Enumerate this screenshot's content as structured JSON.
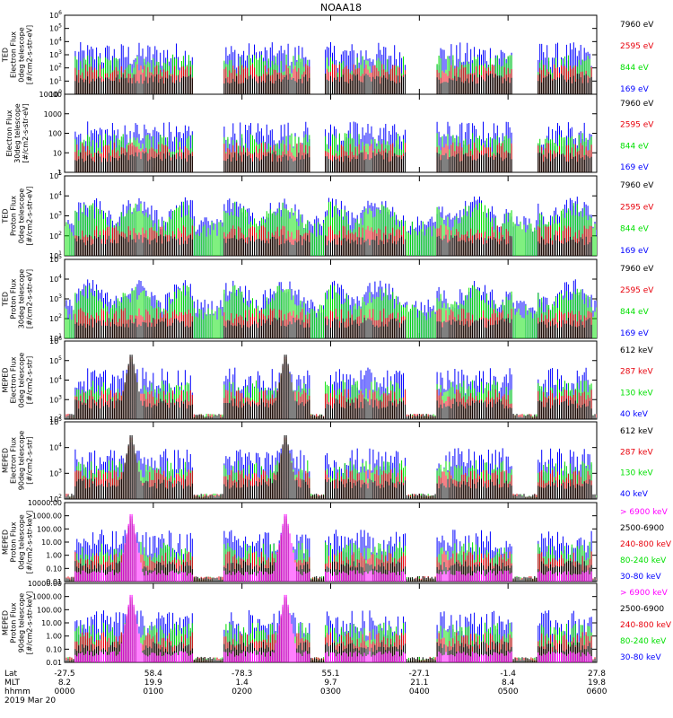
{
  "title": "NOAA18",
  "colors": {
    "black": "#000000",
    "red": "#e8000b",
    "green": "#00e000",
    "blue": "#0000ff",
    "magenta": "#ff00ff"
  },
  "footer": {
    "row_labels": [
      "Lat",
      "MLT",
      "hhmm",
      "2019 Mar 20"
    ],
    "columns": [
      {
        "lat": "-27.5",
        "mlt": "8.2",
        "hhmm": "0000"
      },
      {
        "lat": "58.4",
        "mlt": "19.9",
        "hhmm": "0100"
      },
      {
        "lat": "-78.3",
        "mlt": "1.4",
        "hhmm": "0200"
      },
      {
        "lat": "55.1",
        "mlt": "9.7",
        "hhmm": "0300"
      },
      {
        "lat": "-27.1",
        "mlt": "21.1",
        "hhmm": "0400"
      },
      {
        "lat": "-1.4",
        "mlt": "8.4",
        "hhmm": "0500"
      },
      {
        "lat": "27.8",
        "mlt": "19.8",
        "hhmm": "0600"
      }
    ]
  },
  "chart_data": [
    {
      "type": "line",
      "scale": "log",
      "ylabel": [
        "TED",
        "Electron Flux",
        "0deg telescope",
        "[#/cm2-s-str-eV]"
      ],
      "yticks": [
        "10^0",
        "10^1",
        "10^2",
        "10^3",
        "10^4",
        "10^5",
        "10^6"
      ],
      "ylim": [
        1,
        1000000
      ],
      "series": [
        {
          "name": "7960 eV",
          "color": "black"
        },
        {
          "name": "2595 eV",
          "color": "red"
        },
        {
          "name": "844 eV",
          "color": "green"
        },
        {
          "name": "169 eV",
          "color": "blue"
        }
      ]
    },
    {
      "type": "line",
      "scale": "log",
      "ylabel": [
        "Electron Flux",
        "30deg telescope",
        "[#/cm2-s-str-eV]"
      ],
      "yticks": [
        "1",
        "10",
        "100",
        "1000",
        "10000"
      ],
      "ylim": [
        1,
        10000
      ],
      "series": [
        {
          "name": "7960 eV",
          "color": "black"
        },
        {
          "name": "2595 eV",
          "color": "red"
        },
        {
          "name": "844 eV",
          "color": "green"
        },
        {
          "name": "169 eV",
          "color": "blue"
        }
      ]
    },
    {
      "type": "line",
      "scale": "log",
      "ylabel": [
        "TED",
        "Proton Flux",
        "0deg telescope",
        "[#/cm2-s-str-eV]"
      ],
      "yticks": [
        "10^1",
        "10^2",
        "10^3",
        "10^4",
        "10^5"
      ],
      "ylim": [
        10,
        100000
      ],
      "series": [
        {
          "name": "7960 eV",
          "color": "black"
        },
        {
          "name": "2595 eV",
          "color": "red"
        },
        {
          "name": "844 eV",
          "color": "green"
        },
        {
          "name": "169 eV",
          "color": "blue"
        }
      ]
    },
    {
      "type": "line",
      "scale": "log",
      "ylabel": [
        "TED",
        "Proton Flux",
        "30deg telescope",
        "[#/cm2-s-str-eV]"
      ],
      "yticks": [
        "10^1",
        "10^2",
        "10^3",
        "10^4",
        "10^5"
      ],
      "ylim": [
        10,
        100000
      ],
      "series": [
        {
          "name": "7960 eV",
          "color": "black"
        },
        {
          "name": "2595 eV",
          "color": "red"
        },
        {
          "name": "844 eV",
          "color": "green"
        },
        {
          "name": "169 eV",
          "color": "blue"
        }
      ]
    },
    {
      "type": "line",
      "scale": "log",
      "ylabel": [
        "MEPED",
        "Electron Flux",
        "0deg telescope",
        "[#/cm2-s-str]"
      ],
      "yticks": [
        "10^2",
        "10^3",
        "10^4",
        "10^5",
        "10^6"
      ],
      "ylim": [
        100,
        1000000
      ],
      "series": [
        {
          "name": "612 keV",
          "color": "black"
        },
        {
          "name": "287 keV",
          "color": "red"
        },
        {
          "name": "130 keV",
          "color": "green"
        },
        {
          "name": "40 keV",
          "color": "blue"
        }
      ]
    },
    {
      "type": "line",
      "scale": "log",
      "ylabel": [
        "MEPED",
        "Electron Flux",
        "90deg telescope",
        "[#/cm2-s-str]"
      ],
      "yticks": [
        "10^2",
        "10^3",
        "10^4",
        "10^5"
      ],
      "ylim": [
        100,
        100000
      ],
      "series": [
        {
          "name": "612 keV",
          "color": "black"
        },
        {
          "name": "287 keV",
          "color": "red"
        },
        {
          "name": "130 keV",
          "color": "green"
        },
        {
          "name": "40 keV",
          "color": "blue"
        }
      ]
    },
    {
      "type": "line",
      "scale": "log",
      "ylabel": [
        "MEPED",
        "Proton Flux",
        "0deg telescope",
        "[#/cm2-s-str-keV]"
      ],
      "yticks": [
        "0.01",
        "0.10",
        "1.00",
        "10.00",
        "100.00",
        "1000.00",
        "10000.00"
      ],
      "ylim": [
        0.01,
        10000
      ],
      "series": [
        {
          "name": "> 6900 keV",
          "color": "magenta"
        },
        {
          "name": "2500-6900",
          "color": "black"
        },
        {
          "name": "240-800 keV",
          "color": "red"
        },
        {
          "name": "80-240 keV",
          "color": "green"
        },
        {
          "name": "30-80 keV",
          "color": "blue"
        }
      ]
    },
    {
      "type": "line",
      "scale": "log",
      "ylabel": [
        "MEPED",
        "Proton Flux",
        "90deg telescope",
        "[#/cm2-s-str-keV]"
      ],
      "yticks": [
        "0.01",
        "0.10",
        "1.00",
        "10.00",
        "100.00",
        "1000.00",
        "10000.00"
      ],
      "ylim": [
        0.01,
        10000
      ],
      "series": [
        {
          "name": "> 6900 keV",
          "color": "magenta"
        },
        {
          "name": "2500-6900",
          "color": "black"
        },
        {
          "name": "240-800 keV",
          "color": "red"
        },
        {
          "name": "80-240 keV",
          "color": "green"
        },
        {
          "name": "30-80 keV",
          "color": "blue"
        }
      ]
    }
  ]
}
